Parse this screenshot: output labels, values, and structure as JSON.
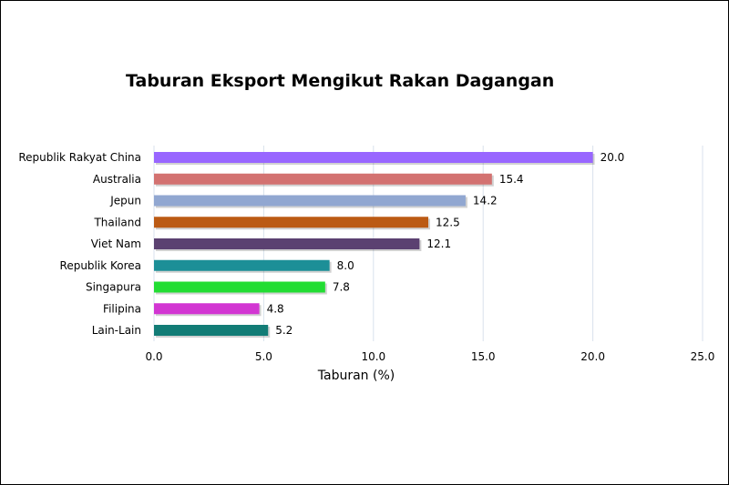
{
  "chart_data": {
    "type": "bar",
    "orientation": "horizontal",
    "title": "Taburan Eksport Mengikut Rakan Dagangan",
    "xlabel": "Taburan (%)",
    "ylabel": "",
    "xlim": [
      0,
      25
    ],
    "ticks": [
      "0.0",
      "5.0",
      "10.0",
      "15.0",
      "20.0",
      "25.0"
    ],
    "grid": true,
    "categories": [
      "Republik Rakyat China",
      "Australia",
      "Jepun",
      "Thailand",
      "Viet Nam",
      "Republik Korea",
      "Singapura",
      "Filipina",
      "Lain-Lain"
    ],
    "values": [
      20.0,
      15.4,
      14.2,
      12.5,
      12.1,
      8.0,
      7.8,
      4.8,
      5.2
    ],
    "value_labels": [
      "20.0",
      "15.4",
      "14.2",
      "12.5",
      "12.1",
      "8.0",
      "7.8",
      "4.8",
      "5.2"
    ],
    "colors": [
      "#9966ff",
      "#d37271",
      "#91a7d1",
      "#bb5a14",
      "#5b4171",
      "#1c8f97",
      "#22dd33",
      "#d236d2",
      "#127c76"
    ]
  }
}
